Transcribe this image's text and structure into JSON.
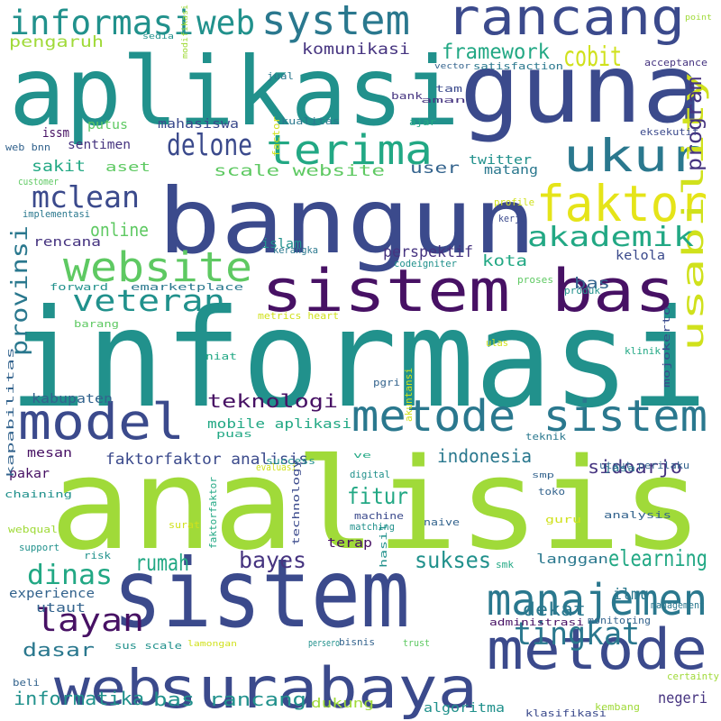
{
  "palette": {
    "navy": "#3b4a8c",
    "indigo": "#463480",
    "purple": "#471164",
    "blue": "#33638d",
    "teal": "#21918c",
    "sea": "#2a788e",
    "green": "#22a884",
    "lgreen": "#5ec962",
    "lime": "#a0da39",
    "yellow": "#d0e11c",
    "yellow2": "#e5e419"
  },
  "words": [
    {
      "text": "informasi"
    },
    {
      "text": "analisis"
    },
    {
      "text": "sistem"
    },
    {
      "text": "aplikasi"
    },
    {
      "text": "guna"
    },
    {
      "text": "bangun"
    },
    {
      "text": "sistem bas"
    },
    {
      "text": "metode"
    },
    {
      "text": "rancang"
    },
    {
      "text": "model"
    },
    {
      "text": "metode sistem"
    },
    {
      "text": "web"
    },
    {
      "text": "surabaya"
    },
    {
      "text": "faktor"
    },
    {
      "text": "ukur"
    },
    {
      "text": "terima"
    },
    {
      "text": "website"
    },
    {
      "text": "system"
    },
    {
      "text": "manajemen"
    },
    {
      "text": "informasi"
    },
    {
      "text": "web"
    },
    {
      "text": "usability"
    },
    {
      "text": "tingkat"
    },
    {
      "text": "layan"
    },
    {
      "text": "mclean"
    },
    {
      "text": "veteran"
    },
    {
      "text": "delone"
    },
    {
      "text": "dinas"
    },
    {
      "text": "akademik"
    },
    {
      "text": "provinsi"
    },
    {
      "text": "program"
    },
    {
      "text": "framework"
    },
    {
      "text": "cobit"
    },
    {
      "text": "bayes"
    },
    {
      "text": "sukses"
    },
    {
      "text": "elearning"
    },
    {
      "text": "rumah"
    },
    {
      "text": "fitur"
    },
    {
      "text": "dekat"
    },
    {
      "text": "sidoarjo"
    },
    {
      "text": "teknologi"
    },
    {
      "text": "indonesia"
    },
    {
      "text": "bas rancang"
    },
    {
      "text": "informatika"
    },
    {
      "text": "dasar"
    },
    {
      "text": "online"
    },
    {
      "text": "komunikasi"
    },
    {
      "text": "sakit"
    },
    {
      "text": "pengaruh"
    },
    {
      "text": "scale website"
    },
    {
      "text": "user"
    },
    {
      "text": "kota"
    },
    {
      "text": "bas"
    },
    {
      "text": "perspektif"
    },
    {
      "text": "faktorfaktor analisis"
    },
    {
      "text": "mobile aplikasi"
    },
    {
      "text": "langgan"
    },
    {
      "text": "ilmu"
    },
    {
      "text": "negeri"
    },
    {
      "text": "algoritma"
    },
    {
      "text": "dukung"
    },
    {
      "text": "kabupaten"
    },
    {
      "text": "experience"
    },
    {
      "text": "utaut"
    },
    {
      "text": "rencana"
    },
    {
      "text": "mahasiswa"
    },
    {
      "text": "putus"
    },
    {
      "text": "sentimen"
    },
    {
      "text": "aset"
    },
    {
      "text": "islam"
    },
    {
      "text": "kelola"
    },
    {
      "text": "twitter"
    },
    {
      "text": "matang"
    },
    {
      "text": "satisfaction"
    },
    {
      "text": "acceptance"
    },
    {
      "text": "mesan"
    },
    {
      "text": "pakar"
    },
    {
      "text": "chaining"
    },
    {
      "text": "puas"
    },
    {
      "text": "success"
    },
    {
      "text": "utaut perilaku"
    },
    {
      "text": "terap"
    },
    {
      "text": "guru"
    },
    {
      "text": "analysis"
    },
    {
      "text": "sus scale"
    },
    {
      "text": "administrasi"
    },
    {
      "text": "monitoring"
    },
    {
      "text": "klasifikasi"
    },
    {
      "text": "kembang"
    },
    {
      "text": "kapabilitas"
    },
    {
      "text": "mojokerto"
    },
    {
      "text": "klinik"
    },
    {
      "text": "akuntansi"
    },
    {
      "text": "ulas"
    },
    {
      "text": "pgri"
    },
    {
      "text": "niat"
    },
    {
      "text": "metrics heart"
    },
    {
      "text": "barang"
    },
    {
      "text": "forward"
    },
    {
      "text": "emarketplace"
    },
    {
      "text": "produk"
    },
    {
      "text": "proses"
    },
    {
      "text": "kerangka"
    },
    {
      "text": "codeigniter"
    },
    {
      "text": "kerja"
    },
    {
      "text": "profile"
    },
    {
      "text": "implementasi"
    },
    {
      "text": "customer"
    },
    {
      "text": "issm"
    },
    {
      "text": "web bnn"
    },
    {
      "text": "factor"
    },
    {
      "text": "kualitas"
    },
    {
      "text": "ajar"
    },
    {
      "text": "bank"
    },
    {
      "text": "aman"
    },
    {
      "text": "tam"
    },
    {
      "text": "eksekutif"
    },
    {
      "text": "vector"
    },
    {
      "text": "point"
    },
    {
      "text": "jual"
    },
    {
      "text": "sedia"
    },
    {
      "text": "modifikasi"
    },
    {
      "text": "teknik"
    },
    {
      "text": "jasa"
    },
    {
      "text": "smp"
    },
    {
      "text": "toko"
    },
    {
      "text": "digital"
    },
    {
      "text": "ve"
    },
    {
      "text": "evaluasi"
    },
    {
      "text": "machine"
    },
    {
      "text": "matching"
    },
    {
      "text": "naive"
    },
    {
      "text": "technology"
    },
    {
      "text": "faktorfaktor"
    },
    {
      "text": "surat"
    },
    {
      "text": "webqual"
    },
    {
      "text": "support"
    },
    {
      "text": "risk"
    },
    {
      "text": "hasil"
    },
    {
      "text": "smk"
    },
    {
      "text": "management"
    },
    {
      "text": "lamongan"
    },
    {
      "text": "persero"
    },
    {
      "text": "bisnis"
    },
    {
      "text": "trust"
    },
    {
      "text": "beli"
    },
    {
      "text": "certainty"
    }
  ]
}
